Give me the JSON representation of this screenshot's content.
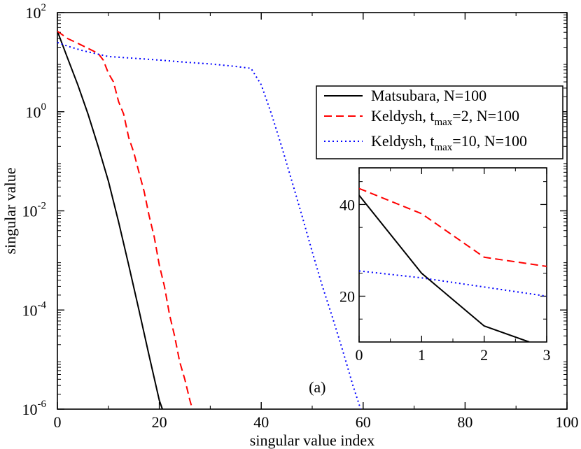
{
  "chart_data": [
    {
      "type": "line",
      "panel": "main",
      "title": "",
      "xlabel": "singular value index",
      "ylabel": "singular value",
      "xlim": [
        0,
        100
      ],
      "ylim_log10": [
        -6,
        2
      ],
      "yscale": "log",
      "x_ticks": [
        0,
        20,
        40,
        60,
        80,
        100
      ],
      "x_tick_labels": [
        "0",
        "20",
        "40",
        "60",
        "80",
        "100"
      ],
      "y_ticks_log10": [
        -6,
        -4,
        -2,
        0,
        2
      ],
      "y_tick_labels": [
        {
          "base": "10",
          "exp": "-6"
        },
        {
          "base": "10",
          "exp": "-4"
        },
        {
          "base": "10",
          "exp": "-2"
        },
        {
          "base": "10",
          "exp": "0"
        },
        {
          "base": "10",
          "exp": "2"
        }
      ],
      "annotation": "(a)",
      "legend_position": "top-right",
      "series": [
        {
          "name": "Matsubara, N=100",
          "legend": {
            "main": "Matsubara, N=100",
            "sub": "",
            "tail": ""
          },
          "color": "#000000",
          "dash": "solid",
          "x": [
            0,
            2,
            4,
            6,
            8,
            10,
            12,
            14,
            16,
            18,
            20,
            20.6
          ],
          "y": [
            42,
            12,
            3.5,
            0.9,
            0.2,
            0.04,
            0.006,
            0.0008,
            0.0001,
            1.2e-05,
            1.5e-06,
            1e-06
          ]
        },
        {
          "name": "Keldysh, t_max=2, N=100",
          "legend": {
            "main": "Keldysh, t",
            "sub": "max",
            "tail": "=2, N=100"
          },
          "color": "#ff0000",
          "dash": "dashed",
          "x": [
            0,
            2,
            4,
            6,
            8,
            9,
            10,
            11,
            12,
            13,
            14,
            15,
            16,
            17,
            18,
            19,
            20,
            21,
            22,
            23,
            24,
            25,
            26,
            26.5
          ],
          "y": [
            42,
            30,
            24,
            19,
            15,
            11,
            6,
            4,
            1.6,
            0.9,
            0.3,
            0.15,
            0.06,
            0.025,
            0.008,
            0.003,
            0.0008,
            0.0003,
            8e-05,
            3e-05,
            9e-06,
            4e-06,
            1.5e-06,
            1e-06
          ]
        },
        {
          "name": "Keldysh, t_max=10, N=100",
          "legend": {
            "main": "Keldysh, t",
            "sub": "max",
            "tail": "=10, N=100"
          },
          "color": "#0000ff",
          "dash": "dotted",
          "x": [
            0,
            2,
            5,
            10,
            15,
            20,
            25,
            30,
            35,
            38,
            40,
            42,
            44,
            46,
            48,
            50,
            52,
            54,
            56,
            58,
            59.5
          ],
          "y": [
            25,
            21,
            17,
            13,
            12,
            11,
            10,
            9.2,
            8.2,
            7.5,
            3.5,
            0.9,
            0.2,
            0.04,
            0.008,
            0.0015,
            0.0003,
            7e-05,
            1.5e-05,
            3e-06,
            1e-06
          ]
        }
      ]
    },
    {
      "type": "line",
      "panel": "inset",
      "xlabel": "",
      "ylabel": "",
      "xlim": [
        0,
        3
      ],
      "ylim": [
        10,
        48
      ],
      "x_ticks": [
        0,
        1,
        2,
        3
      ],
      "x_tick_labels": [
        "0",
        "1",
        "2",
        "3"
      ],
      "y_ticks": [
        20,
        40
      ],
      "y_tick_labels": [
        "20",
        "40"
      ],
      "series": [
        {
          "name": "Matsubara, N=100",
          "color": "#000000",
          "dash": "solid",
          "x": [
            0,
            1,
            2,
            2.72
          ],
          "y": [
            42,
            25,
            13.5,
            10
          ]
        },
        {
          "name": "Keldysh, t_max=2, N=100",
          "color": "#ff0000",
          "dash": "dashed",
          "x": [
            0,
            1,
            2,
            3
          ],
          "y": [
            43.5,
            38,
            28.5,
            26.5
          ]
        },
        {
          "name": "Keldysh, t_max=10, N=100",
          "color": "#0000ff",
          "dash": "dotted",
          "x": [
            0,
            1,
            2,
            3
          ],
          "y": [
            25.5,
            24,
            22,
            20
          ]
        }
      ]
    }
  ]
}
